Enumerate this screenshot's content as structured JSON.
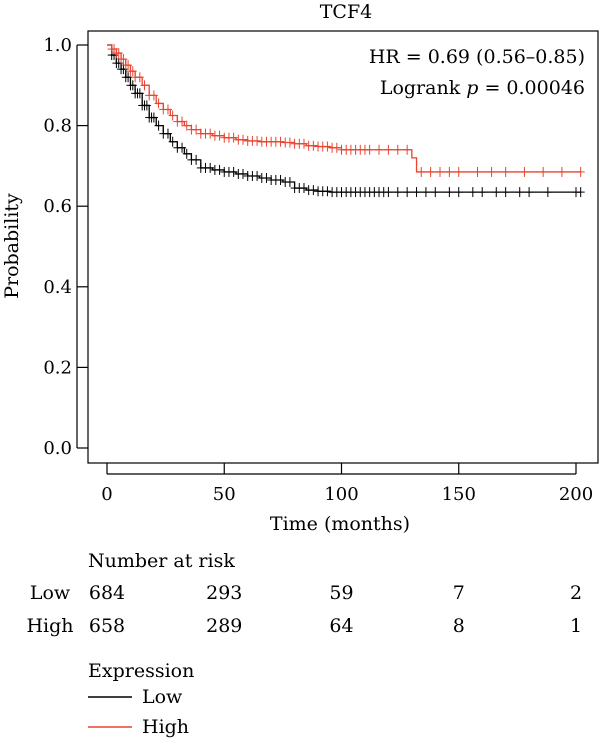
{
  "chart_data": {
    "type": "line",
    "title": "TCF4",
    "xlabel": "Time (months)",
    "ylabel": "Probability",
    "xlim": [
      0,
      205
    ],
    "ylim": [
      0,
      1.0
    ],
    "x_ticks": [
      "0",
      "50",
      "100",
      "150",
      "200"
    ],
    "y_ticks": [
      "0.0",
      "0.2",
      "0.4",
      "0.6",
      "0.8",
      "1.0"
    ],
    "hr_text": "HR = 0.69 (0.56–0.85)",
    "logrank_prefix": "Logrank ",
    "logrank_p": "p",
    "logrank_suffix": " = 0.00046",
    "risk_table": {
      "header": "Number at risk",
      "times": [
        0,
        50,
        100,
        150,
        200
      ],
      "rows": [
        {
          "label": "Low",
          "values": [
            "684",
            "293",
            "59",
            "7",
            "2"
          ],
          "color": "#000000"
        },
        {
          "label": "High",
          "values": [
            "658",
            "289",
            "64",
            "8",
            "1"
          ],
          "color": "#e8442f"
        }
      ]
    },
    "legend": {
      "title": "Expression",
      "placement": "bottom-left",
      "items": [
        {
          "label": "Low",
          "color": "#000000"
        },
        {
          "label": "High",
          "color": "#e8442f"
        }
      ]
    },
    "series": [
      {
        "name": "Low",
        "color": "#000000",
        "x": [
          0,
          2,
          4,
          6,
          8,
          10,
          12,
          15,
          18,
          21,
          24,
          27,
          30,
          33,
          36,
          40,
          45,
          50,
          55,
          60,
          65,
          70,
          75,
          80,
          85,
          90,
          95,
          100,
          120,
          150,
          180,
          202
        ],
        "y": [
          1.0,
          0.975,
          0.955,
          0.94,
          0.92,
          0.9,
          0.88,
          0.85,
          0.82,
          0.8,
          0.78,
          0.76,
          0.745,
          0.73,
          0.715,
          0.695,
          0.69,
          0.685,
          0.68,
          0.675,
          0.67,
          0.665,
          0.66,
          0.645,
          0.64,
          0.637,
          0.635,
          0.635,
          0.635,
          0.635,
          0.635,
          0.635
        ]
      },
      {
        "name": "High",
        "color": "#e8442f",
        "x": [
          0,
          2,
          4,
          6,
          8,
          10,
          12,
          15,
          18,
          21,
          24,
          27,
          30,
          33,
          36,
          40,
          45,
          50,
          55,
          60,
          65,
          70,
          75,
          80,
          85,
          90,
          95,
          100,
          105,
          110,
          120,
          130,
          132,
          140,
          160,
          180,
          202
        ],
        "y": [
          1.0,
          0.99,
          0.98,
          0.965,
          0.95,
          0.935,
          0.92,
          0.9,
          0.875,
          0.855,
          0.84,
          0.825,
          0.81,
          0.8,
          0.79,
          0.78,
          0.775,
          0.77,
          0.765,
          0.762,
          0.76,
          0.76,
          0.758,
          0.755,
          0.75,
          0.748,
          0.745,
          0.74,
          0.74,
          0.74,
          0.74,
          0.72,
          0.685,
          0.685,
          0.685,
          0.685,
          0.685
        ]
      }
    ],
    "censor_marks": [
      {
        "series": "Low",
        "x": [
          2,
          3,
          4,
          5,
          6,
          7,
          8,
          9,
          10,
          11,
          12,
          13,
          14,
          15,
          16,
          17,
          18,
          19,
          20,
          22,
          24,
          26,
          28,
          30,
          32,
          34,
          36,
          38,
          40,
          42,
          44,
          46,
          48,
          50,
          52,
          54,
          56,
          58,
          60,
          62,
          64,
          66,
          68,
          70,
          72,
          74,
          76,
          78,
          80,
          82,
          84,
          86,
          88,
          90,
          92,
          94,
          96,
          98,
          100,
          102,
          104,
          106,
          108,
          110,
          112,
          114,
          116,
          118,
          120,
          124,
          128,
          132,
          136,
          140,
          146,
          150,
          156,
          160,
          166,
          170,
          176,
          180,
          188,
          200,
          202
        ]
      },
      {
        "series": "High",
        "x": [
          2,
          3,
          4,
          5,
          6,
          7,
          8,
          9,
          10,
          11,
          12,
          14,
          16,
          18,
          20,
          22,
          24,
          26,
          28,
          30,
          32,
          34,
          36,
          38,
          40,
          42,
          44,
          46,
          48,
          50,
          52,
          54,
          56,
          58,
          60,
          62,
          64,
          66,
          68,
          70,
          72,
          74,
          76,
          78,
          80,
          82,
          84,
          86,
          88,
          90,
          92,
          94,
          96,
          98,
          100,
          102,
          104,
          106,
          108,
          110,
          112,
          116,
          120,
          124,
          128,
          134,
          138,
          142,
          146,
          150,
          158,
          164,
          170,
          178,
          186,
          194,
          202
        ]
      }
    ]
  }
}
